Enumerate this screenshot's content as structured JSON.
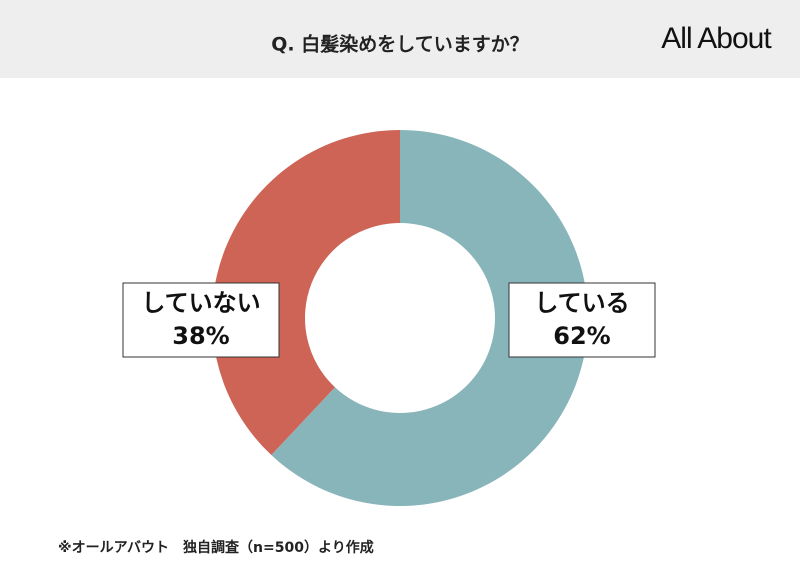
{
  "chart_data": {
    "type": "donut",
    "title": "Q. 白髪染めをしていますか？",
    "logo": "All About",
    "categories": [
      "している",
      "していない"
    ],
    "values": [
      62,
      38
    ],
    "value_labels": [
      "62%",
      "38%"
    ],
    "colors": [
      "#88b5b9",
      "#cd6456"
    ],
    "footnote": "※オールアバウト　独自調査（n=500）より作成"
  }
}
